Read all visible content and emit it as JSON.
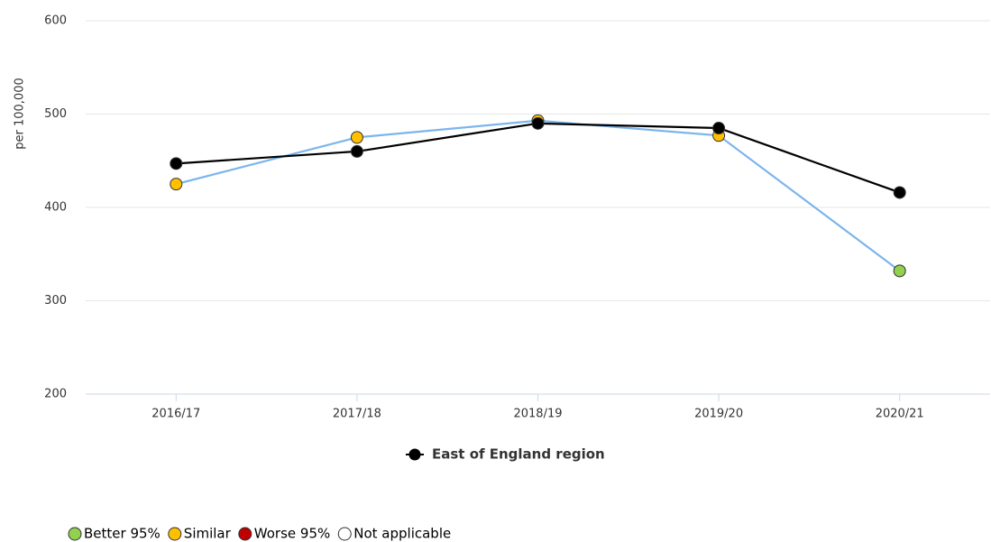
{
  "chart_data": {
    "type": "line",
    "y_label": "per 100,000",
    "categories": [
      "2016/17",
      "2017/18",
      "2018/19",
      "2019/20",
      "2020/21"
    ],
    "series": [
      {
        "color": "#7cb5ec",
        "values": [
          425,
          475,
          493,
          477,
          332
        ],
        "point_colors": [
          "#ffc000",
          "#ffc000",
          "#ffc000",
          "#ffc000",
          "#92d050"
        ]
      },
      {
        "name": "East of England region",
        "color": "#000000",
        "values": [
          447,
          460,
          490,
          485,
          416
        ]
      }
    ],
    "ylim": [
      200,
      600
    ],
    "yticks": [
      200,
      300,
      400,
      500,
      600
    ],
    "grid": true,
    "legend": "bottom",
    "significance_legend": [
      {
        "label": "Better 95%",
        "color": "#92d050"
      },
      {
        "label": "Similar",
        "color": "#ffc000"
      },
      {
        "label": "Worse 95%",
        "color": "#c00000"
      },
      {
        "label": "Not applicable",
        "color": "#ffffff"
      }
    ]
  }
}
